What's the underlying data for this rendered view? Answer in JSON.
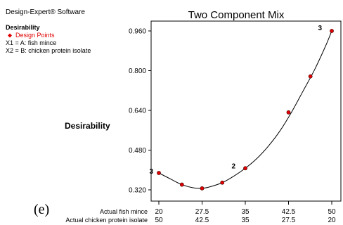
{
  "software": "Design-Expert® Software",
  "legend": {
    "response": "Desirability",
    "design_points_label": "Design Points",
    "x1": "X1 = A: fish mince",
    "x2": "X2 = B: chicken protein isolate"
  },
  "panel_label": "(e)",
  "colors": {
    "design_point": "#e00000",
    "curve": "#000000",
    "legend_accent": "#e00000"
  },
  "chart_data": {
    "type": "line",
    "title": "Two Component Mix",
    "ylabel": "Desirability",
    "x_row_labels": [
      "Actual fish mince",
      "Actual chicken protein isolate"
    ],
    "x_ticks_fish_mince": [
      "20",
      "27.5",
      "35",
      "42.5",
      "50"
    ],
    "x_ticks_chicken_protein_isolate": [
      "50",
      "42.5",
      "35",
      "27.5",
      "20"
    ],
    "y_ticks": [
      "0.320",
      "0.480",
      "0.640",
      "0.800",
      "0.960"
    ],
    "xlim": [
      20,
      50
    ],
    "ylim": [
      0.32,
      0.96
    ],
    "curve": {
      "x": [
        20,
        22,
        24,
        26,
        27.5,
        29,
        31,
        33,
        35,
        37,
        39,
        41,
        43,
        45,
        47,
        49,
        50
      ],
      "y": [
        0.388,
        0.364,
        0.341,
        0.328,
        0.326,
        0.333,
        0.349,
        0.375,
        0.407,
        0.446,
        0.496,
        0.557,
        0.632,
        0.717,
        0.803,
        0.903,
        0.96
      ]
    },
    "design_points": [
      {
        "x": 20,
        "y": 0.388,
        "label": "3"
      },
      {
        "x": 24,
        "y": 0.341,
        "label": ""
      },
      {
        "x": 27.5,
        "y": 0.326,
        "label": ""
      },
      {
        "x": 31,
        "y": 0.349,
        "label": ""
      },
      {
        "x": 35,
        "y": 0.407,
        "label": "2"
      },
      {
        "x": 42.5,
        "y": 0.632,
        "label": ""
      },
      {
        "x": 46.3,
        "y": 0.777,
        "label": ""
      },
      {
        "x": 50,
        "y": 0.96,
        "label": "3"
      }
    ]
  }
}
